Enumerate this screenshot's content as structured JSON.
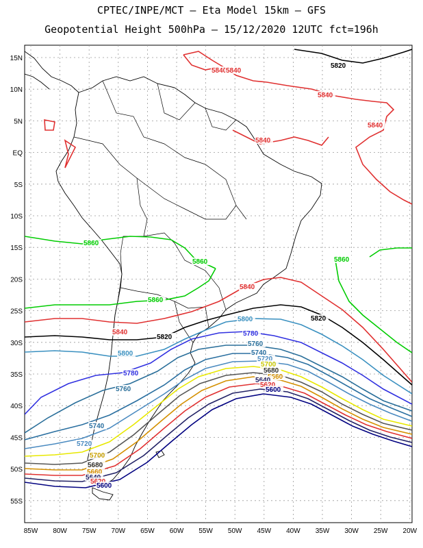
{
  "title_line1": "CPTEC/INPE/MCT –  Eta Model 15km – GFS",
  "title_line2": "Geopotential Height 500hPa – 15/12/2020 12UTC fct=196h",
  "lat_ticks": [
    "15N",
    "10N",
    "5N",
    "EQ",
    "5S",
    "10S",
    "15S",
    "20S",
    "25S",
    "30S",
    "35S",
    "40S",
    "45S",
    "50S",
    "55S"
  ],
  "lon_ticks": [
    "85W",
    "80W",
    "75W",
    "70W",
    "65W",
    "60W",
    "55W",
    "50W",
    "45W",
    "40W",
    "35W",
    "30W",
    "25W",
    "20W"
  ],
  "contour_colors": {
    "5620": "#000080",
    "5640": "#cc2222",
    "5660": "#2a2a9a",
    "5680": "#555555",
    "5700": "#c8a000",
    "5720": "#4a8ac0",
    "5740": "#2a6fa0",
    "5760": "#2a6f9a",
    "5780": "#3030e0",
    "5800": "#3a90c0",
    "5820": "#000000",
    "5840": "#e03030",
    "5860": "#00cc00"
  },
  "contour_labels": [
    {
      "name": "5820-north",
      "text": "5820",
      "color": "#000000"
    },
    {
      "name": "5840-ne-1",
      "text": "5840",
      "color": "#e03030"
    },
    {
      "name": "5840-ne-2",
      "text": "5840",
      "color": "#e03030"
    },
    {
      "name": "5840-ne-3",
      "text": "5840",
      "color": "#e03030"
    },
    {
      "name": "5840-ne-4",
      "text": "5840",
      "color": "#e03030"
    },
    {
      "name": "5840-amazon",
      "text": "5840",
      "color": "#e03030"
    },
    {
      "name": "5860-west",
      "text": "5860",
      "color": "#00cc00"
    },
    {
      "name": "5860-mid",
      "text": "5860",
      "color": "#00cc00"
    },
    {
      "name": "5860-east",
      "text": "5860",
      "color": "#00cc00"
    },
    {
      "name": "5860-south",
      "text": "5860",
      "color": "#00cc00"
    },
    {
      "name": "5840-south",
      "text": "5840",
      "color": "#e03030"
    },
    {
      "name": "5840-sw",
      "text": "5840",
      "color": "#e03030"
    },
    {
      "name": "5820-east",
      "text": "5820",
      "color": "#000000"
    },
    {
      "name": "5820-west",
      "text": "5820",
      "color": "#000000"
    },
    {
      "name": "5800-east",
      "text": "5800",
      "color": "#3a90c0"
    },
    {
      "name": "5800-west",
      "text": "5800",
      "color": "#3a90c0"
    },
    {
      "name": "5780-east",
      "text": "5780",
      "color": "#3030e0"
    },
    {
      "name": "5780-west",
      "text": "5780",
      "color": "#3030e0"
    },
    {
      "name": "5760-east",
      "text": "5760",
      "color": "#2a6f9a"
    },
    {
      "name": "5760-west",
      "text": "5760",
      "color": "#2a6f9a"
    },
    {
      "name": "5740-east",
      "text": "5740",
      "color": "#2a6fa0"
    },
    {
      "name": "5740-west",
      "text": "5740",
      "color": "#2a6fa0"
    },
    {
      "name": "5720-east",
      "text": "5720",
      "color": "#4a8ac0"
    },
    {
      "name": "5720-west",
      "text": "5720",
      "color": "#4a8ac0"
    },
    {
      "name": "5700-east",
      "text": "5700",
      "color": "#c8c800"
    },
    {
      "name": "5700-west",
      "text": "5700",
      "color": "#c8a000"
    },
    {
      "name": "5680-east",
      "text": "5680",
      "color": "#333333"
    },
    {
      "name": "5680-west",
      "text": "5680",
      "color": "#333333"
    },
    {
      "name": "5660-east",
      "text": "5660",
      "color": "#d49000"
    },
    {
      "name": "5660-west",
      "text": "5660",
      "color": "#d49000"
    },
    {
      "name": "5640-east",
      "text": "5640",
      "color": "#222266"
    },
    {
      "name": "5640-west",
      "text": "5640",
      "color": "#222266"
    },
    {
      "name": "5620-east",
      "text": "5620",
      "color": "#e03030"
    },
    {
      "name": "5620-west",
      "text": "5620",
      "color": "#e03030"
    },
    {
      "name": "5600-east",
      "text": "5600",
      "color": "#000080"
    },
    {
      "name": "5600-west",
      "text": "5600",
      "color": "#000080"
    }
  ]
}
